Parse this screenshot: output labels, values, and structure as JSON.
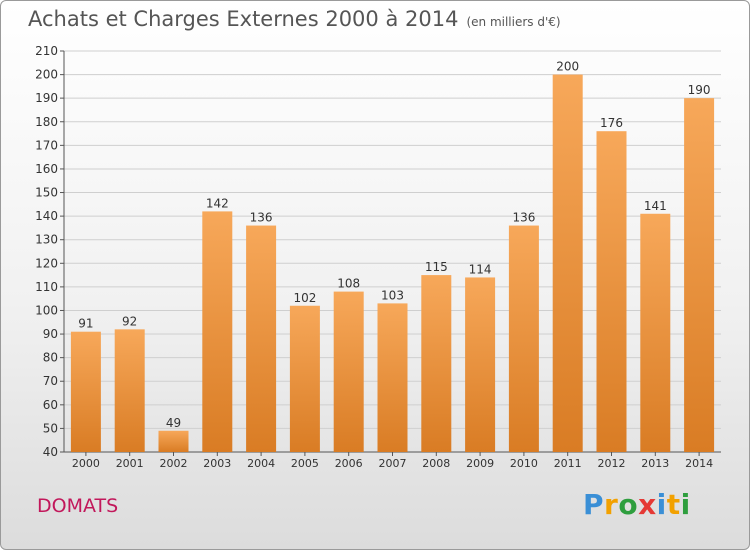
{
  "title": "Achats et Charges Externes 2000 à 2014",
  "subtitle": "(en milliers d'€)",
  "place": "DOMATS",
  "logo": {
    "text": "Proxiti",
    "letters": [
      {
        "ch": "P",
        "color": "#3a8fd6"
      },
      {
        "ch": "r",
        "color": "#f2a100"
      },
      {
        "ch": "o",
        "color": "#2e9e3e"
      },
      {
        "ch": "x",
        "color": "#e53935"
      },
      {
        "ch": "i",
        "color": "#3a8fd6"
      },
      {
        "ch": "t",
        "color": "#f2a100"
      },
      {
        "ch": "i",
        "color": "#2e9e3e"
      }
    ]
  },
  "colors": {
    "bar_light": "#f7a85a",
    "bar_dark": "#d97c24",
    "grid": "#cfcfcf",
    "axis_text": "#333333"
  },
  "chart_data": {
    "type": "bar",
    "title": "Achats et Charges Externes 2000 à 2014",
    "subtitle": "(en milliers d'€)",
    "categories": [
      "2000",
      "2001",
      "2002",
      "2003",
      "2004",
      "2005",
      "2006",
      "2007",
      "2008",
      "2009",
      "2010",
      "2011",
      "2012",
      "2013",
      "2014"
    ],
    "values": [
      91,
      92,
      49,
      142,
      136,
      102,
      108,
      103,
      115,
      114,
      136,
      200,
      176,
      141,
      190
    ],
    "ylim": [
      40,
      210
    ],
    "yticks": [
      40,
      50,
      60,
      70,
      80,
      90,
      100,
      110,
      120,
      130,
      140,
      150,
      160,
      170,
      180,
      190,
      200,
      210
    ],
    "grid": true,
    "xlabel": "",
    "ylabel": ""
  }
}
